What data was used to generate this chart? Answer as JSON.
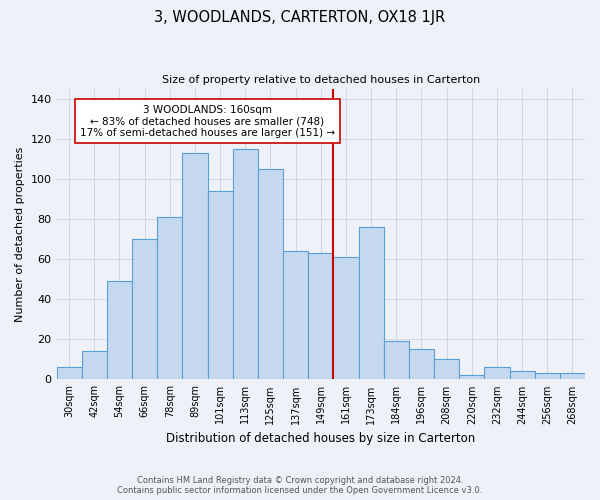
{
  "title": "3, WOODLANDS, CARTERTON, OX18 1JR",
  "subtitle": "Size of property relative to detached houses in Carterton",
  "xlabel": "Distribution of detached houses by size in Carterton",
  "ylabel": "Number of detached properties",
  "bar_labels": [
    "30sqm",
    "42sqm",
    "54sqm",
    "66sqm",
    "78sqm",
    "89sqm",
    "101sqm",
    "113sqm",
    "125sqm",
    "137sqm",
    "149sqm",
    "161sqm",
    "173sqm",
    "184sqm",
    "196sqm",
    "208sqm",
    "220sqm",
    "232sqm",
    "244sqm",
    "256sqm",
    "268sqm"
  ],
  "bar_values": [
    6,
    14,
    49,
    70,
    81,
    113,
    94,
    115,
    105,
    64,
    63,
    61,
    76,
    19,
    15,
    10,
    2,
    6,
    4,
    3,
    3
  ],
  "bar_color": "#c5d8f0",
  "bar_edge_color": "#5a9fd4",
  "vline_x_index": 11,
  "vline_color": "#cc0000",
  "annotation_text": "3 WOODLANDS: 160sqm\n← 83% of detached houses are smaller (748)\n17% of semi-detached houses are larger (151) →",
  "annotation_box_color": "#ffffff",
  "annotation_box_edge": "#cc0000",
  "ylim": [
    0,
    145
  ],
  "yticks": [
    0,
    20,
    40,
    60,
    80,
    100,
    120,
    140
  ],
  "grid_color": "#d0d8e8",
  "bg_color": "#eef2f8",
  "footer1": "Contains HM Land Registry data © Crown copyright and database right 2024.",
  "footer2": "Contains public sector information licensed under the Open Government Licence v3.0."
}
